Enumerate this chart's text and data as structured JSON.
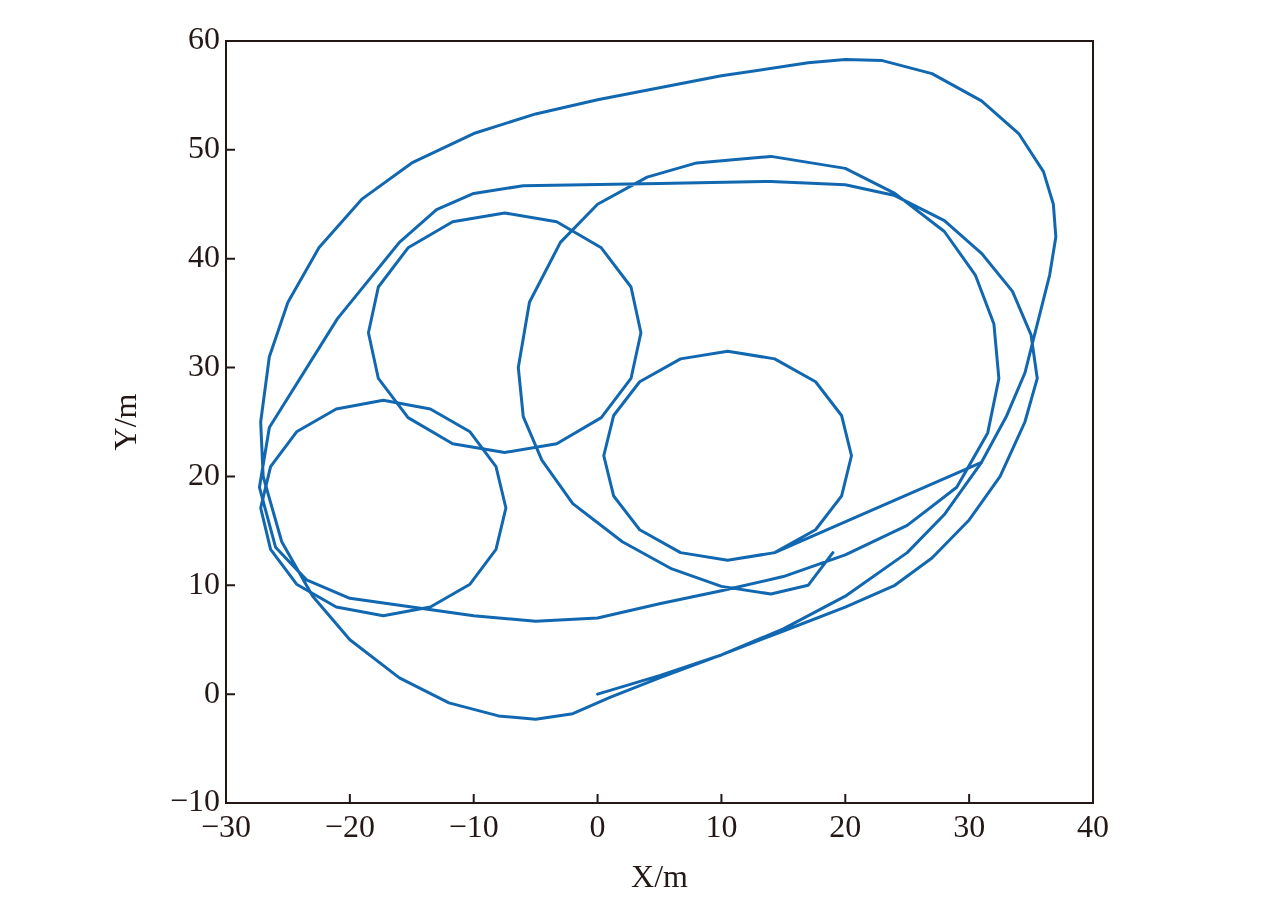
{
  "chart_data": {
    "type": "line",
    "xlabel": "X/m",
    "ylabel": "Y/m",
    "xlim": [
      -30,
      40
    ],
    "xticks": [
      -30,
      -20,
      -10,
      0,
      10,
      20,
      30,
      40
    ],
    "ylim": [
      -10,
      60
    ],
    "yticks": [
      -10,
      0,
      10,
      20,
      30,
      40,
      50,
      60
    ],
    "grid": false,
    "legend": false,
    "marker": "none",
    "line_style": "solid",
    "series": [
      {
        "color": "#1268b0",
        "x": [
          0,
          5,
          10,
          15,
          20,
          25,
          28,
          31,
          33,
          34.5,
          35.5,
          36.5,
          37,
          36.8,
          36,
          34,
          31,
          27,
          23,
          20,
          17,
          10,
          0,
          -5,
          -10,
          -15,
          -19,
          -22.5,
          -25,
          -26.5,
          -27.2,
          -27,
          -25.5,
          -23,
          -20,
          -16,
          -12,
          -8,
          -5,
          -2,
          1,
          5,
          10,
          15,
          20,
          24,
          27,
          30,
          32.5,
          34.5,
          35.5,
          35,
          33.5,
          31,
          28,
          24,
          20,
          14,
          5,
          -6,
          -10,
          -13,
          -16,
          -21,
          -26.5,
          -27.3,
          -26,
          -23.5,
          -20,
          -15,
          -10,
          -5,
          0,
          5,
          10,
          15,
          20,
          25,
          29,
          31.5,
          32.4,
          32,
          30.5,
          28,
          24,
          20,
          14,
          8,
          4,
          0,
          -3,
          -5.5,
          -6.4,
          -6,
          -4.5,
          -2,
          2,
          6,
          10,
          14,
          17,
          19
        ],
        "values": [
          0,
          1.7,
          3.6,
          6,
          9,
          13,
          16.5,
          21.3,
          25.5,
          29.5,
          34,
          38.5,
          42,
          45,
          48,
          51.5,
          54.5,
          57,
          58.2,
          58.3,
          58,
          56.8,
          54.6,
          53.3,
          51.5,
          48.8,
          45.5,
          41,
          36,
          31,
          25,
          20,
          14,
          9,
          5,
          1.5,
          -0.8,
          -2,
          -2.3,
          -1.8,
          -0.3,
          1.5,
          3.6,
          5.8,
          8,
          10,
          12.5,
          16,
          20,
          25,
          29,
          33,
          37,
          40.5,
          43.5,
          45.8,
          46.8,
          47.1,
          46.9,
          46.7,
          46,
          44.5,
          41.5,
          34.5,
          24.5,
          19,
          13.5,
          10.5,
          8.8,
          8,
          7.2,
          6.7,
          7,
          8.3,
          9.5,
          10.8,
          12.8,
          15.5,
          19,
          24,
          29,
          34,
          38.5,
          42.5,
          46,
          48.3,
          49.4,
          48.8,
          47.5,
          45,
          41.5,
          36,
          30,
          25.5,
          21.5,
          17.5,
          14,
          11.5,
          9.9,
          9.2,
          10,
          13
        ]
      },
      {
        "color": "#1268b0",
        "x": [
          3.5,
          2.7,
          0.3,
          -3.3,
          -7.5,
          -11.7,
          -15.3,
          -17.7,
          -18.5,
          -17.7,
          -15.3,
          -11.7,
          -7.5,
          -3.3,
          0.3,
          2.7,
          3.5,
          2.7
        ],
        "values": [
          33.2,
          37.4,
          41,
          43.4,
          44.2,
          43.4,
          41,
          37.4,
          33.2,
          29,
          25.4,
          23,
          22.2,
          23,
          25.4,
          29,
          33.2,
          37.4
        ]
      },
      {
        "color": "#1268b0",
        "x": [
          -7.4,
          -8.2,
          -10.3,
          -13.5,
          -17.3,
          -21.1,
          -24.3,
          -26.4,
          -27.2,
          -26.4,
          -24.3,
          -21.1,
          -17.3,
          -13.5,
          -10.3,
          -8.2,
          -7.4,
          -8.2
        ],
        "values": [
          17.1,
          20.9,
          24.1,
          26.2,
          27,
          26.2,
          24.1,
          20.9,
          17.1,
          13.3,
          10.1,
          8,
          7.2,
          8,
          10.1,
          13.3,
          17.1,
          20.9
        ]
      },
      {
        "color": "#1268b0",
        "x": [
          31,
          14.3,
          10.5,
          6.7,
          3.4,
          1.3,
          0.5,
          1.3,
          3.4,
          6.7,
          10.5,
          14.3,
          17.6,
          19.7,
          20.5,
          19.7,
          17.6,
          14.3
        ],
        "values": [
          21.3,
          13,
          12.3,
          13,
          15.1,
          18.2,
          21.9,
          25.6,
          28.7,
          30.8,
          31.5,
          30.8,
          28.7,
          25.6,
          21.9,
          18.2,
          15.1,
          13
        ]
      }
    ]
  }
}
